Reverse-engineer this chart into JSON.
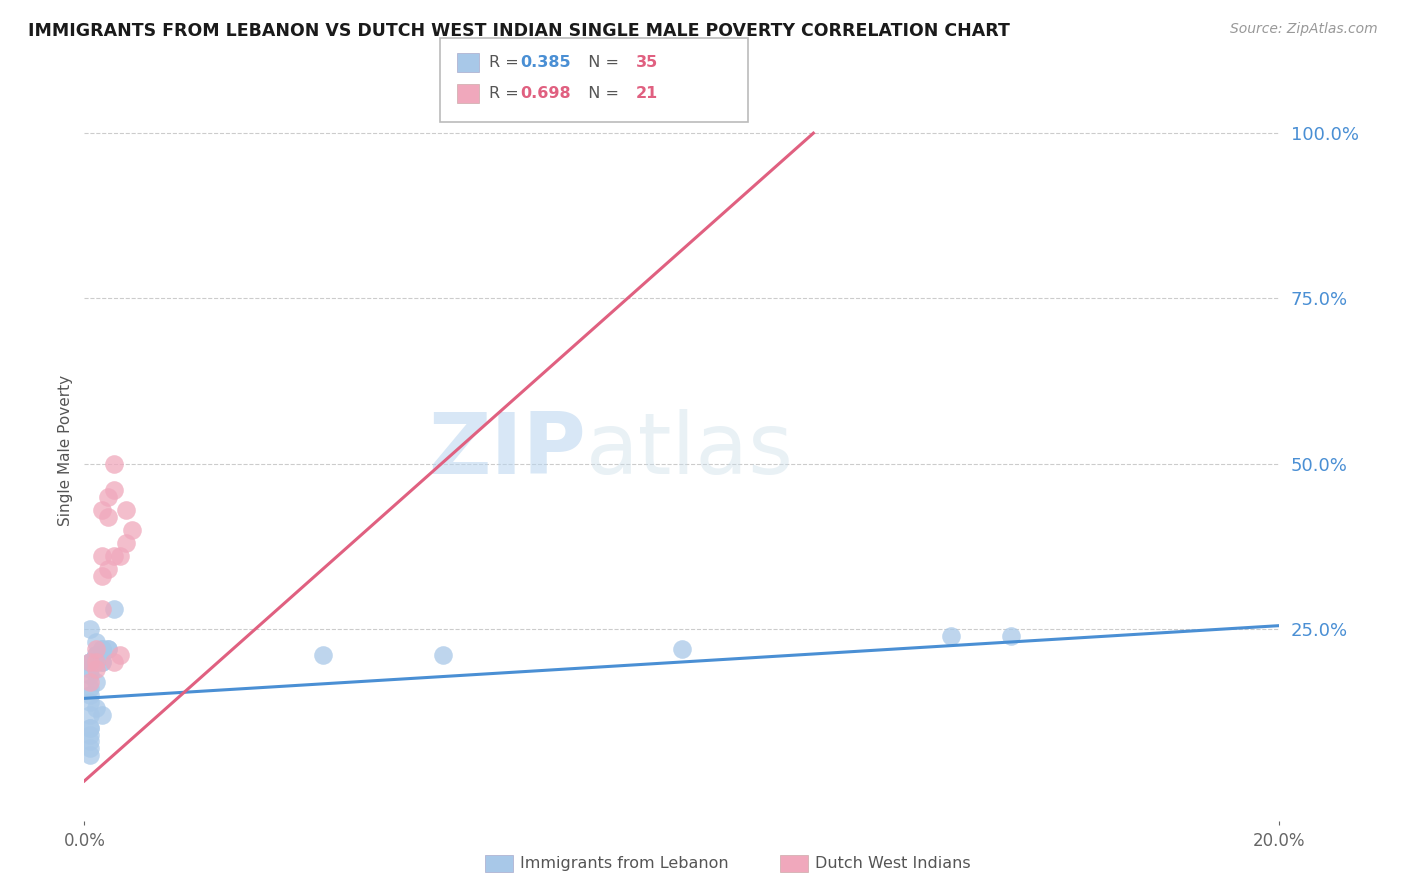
{
  "title": "IMMIGRANTS FROM LEBANON VS DUTCH WEST INDIAN SINGLE MALE POVERTY CORRELATION CHART",
  "source": "Source: ZipAtlas.com",
  "ylabel": "Single Male Poverty",
  "right_ytick_labels": [
    "100.0%",
    "75.0%",
    "50.0%",
    "25.0%"
  ],
  "right_ytick_values": [
    1.0,
    0.75,
    0.5,
    0.25
  ],
  "watermark_zip": "ZIP",
  "watermark_atlas": "atlas",
  "blue_color": "#a8c8e8",
  "pink_color": "#f0a8bc",
  "blue_line_color": "#4a8fd4",
  "pink_line_color": "#e06080",
  "blue_scatter_x": [
    0.001,
    0.002,
    0.003,
    0.001,
    0.004,
    0.005,
    0.002,
    0.003,
    0.003,
    0.004,
    0.002,
    0.001,
    0.002,
    0.003,
    0.002,
    0.001,
    0.001,
    0.002,
    0.001,
    0.001,
    0.001,
    0.002,
    0.003,
    0.001,
    0.001,
    0.001,
    0.001,
    0.001,
    0.001,
    0.001,
    0.04,
    0.06,
    0.1,
    0.145,
    0.155
  ],
  "blue_scatter_y": [
    0.2,
    0.23,
    0.22,
    0.25,
    0.22,
    0.28,
    0.21,
    0.22,
    0.2,
    0.22,
    0.21,
    0.2,
    0.21,
    0.2,
    0.2,
    0.19,
    0.18,
    0.17,
    0.16,
    0.15,
    0.14,
    0.13,
    0.12,
    0.12,
    0.1,
    0.1,
    0.09,
    0.08,
    0.07,
    0.06,
    0.21,
    0.21,
    0.22,
    0.24,
    0.24
  ],
  "pink_scatter_x": [
    0.001,
    0.001,
    0.002,
    0.002,
    0.002,
    0.003,
    0.003,
    0.003,
    0.003,
    0.004,
    0.004,
    0.004,
    0.005,
    0.005,
    0.005,
    0.005,
    0.006,
    0.006,
    0.007,
    0.007,
    0.008
  ],
  "pink_scatter_y": [
    0.17,
    0.2,
    0.19,
    0.2,
    0.22,
    0.28,
    0.33,
    0.36,
    0.43,
    0.34,
    0.42,
    0.45,
    0.36,
    0.46,
    0.5,
    0.2,
    0.21,
    0.36,
    0.38,
    0.43,
    0.4
  ],
  "pink_line_x0": 0.0,
  "pink_line_y0": 0.02,
  "pink_line_x1": 0.122,
  "pink_line_y1": 1.0,
  "blue_line_x0": 0.0,
  "blue_line_y0": 0.145,
  "blue_line_x1": 0.2,
  "blue_line_y1": 0.255,
  "xlim_min": 0.0,
  "xlim_max": 0.2,
  "ylim_min": -0.04,
  "ylim_max": 1.08,
  "background_color": "#ffffff",
  "grid_color": "#cccccc",
  "legend_r1": "0.385",
  "legend_n1": "35",
  "legend_r2": "0.698",
  "legend_n2": "21"
}
